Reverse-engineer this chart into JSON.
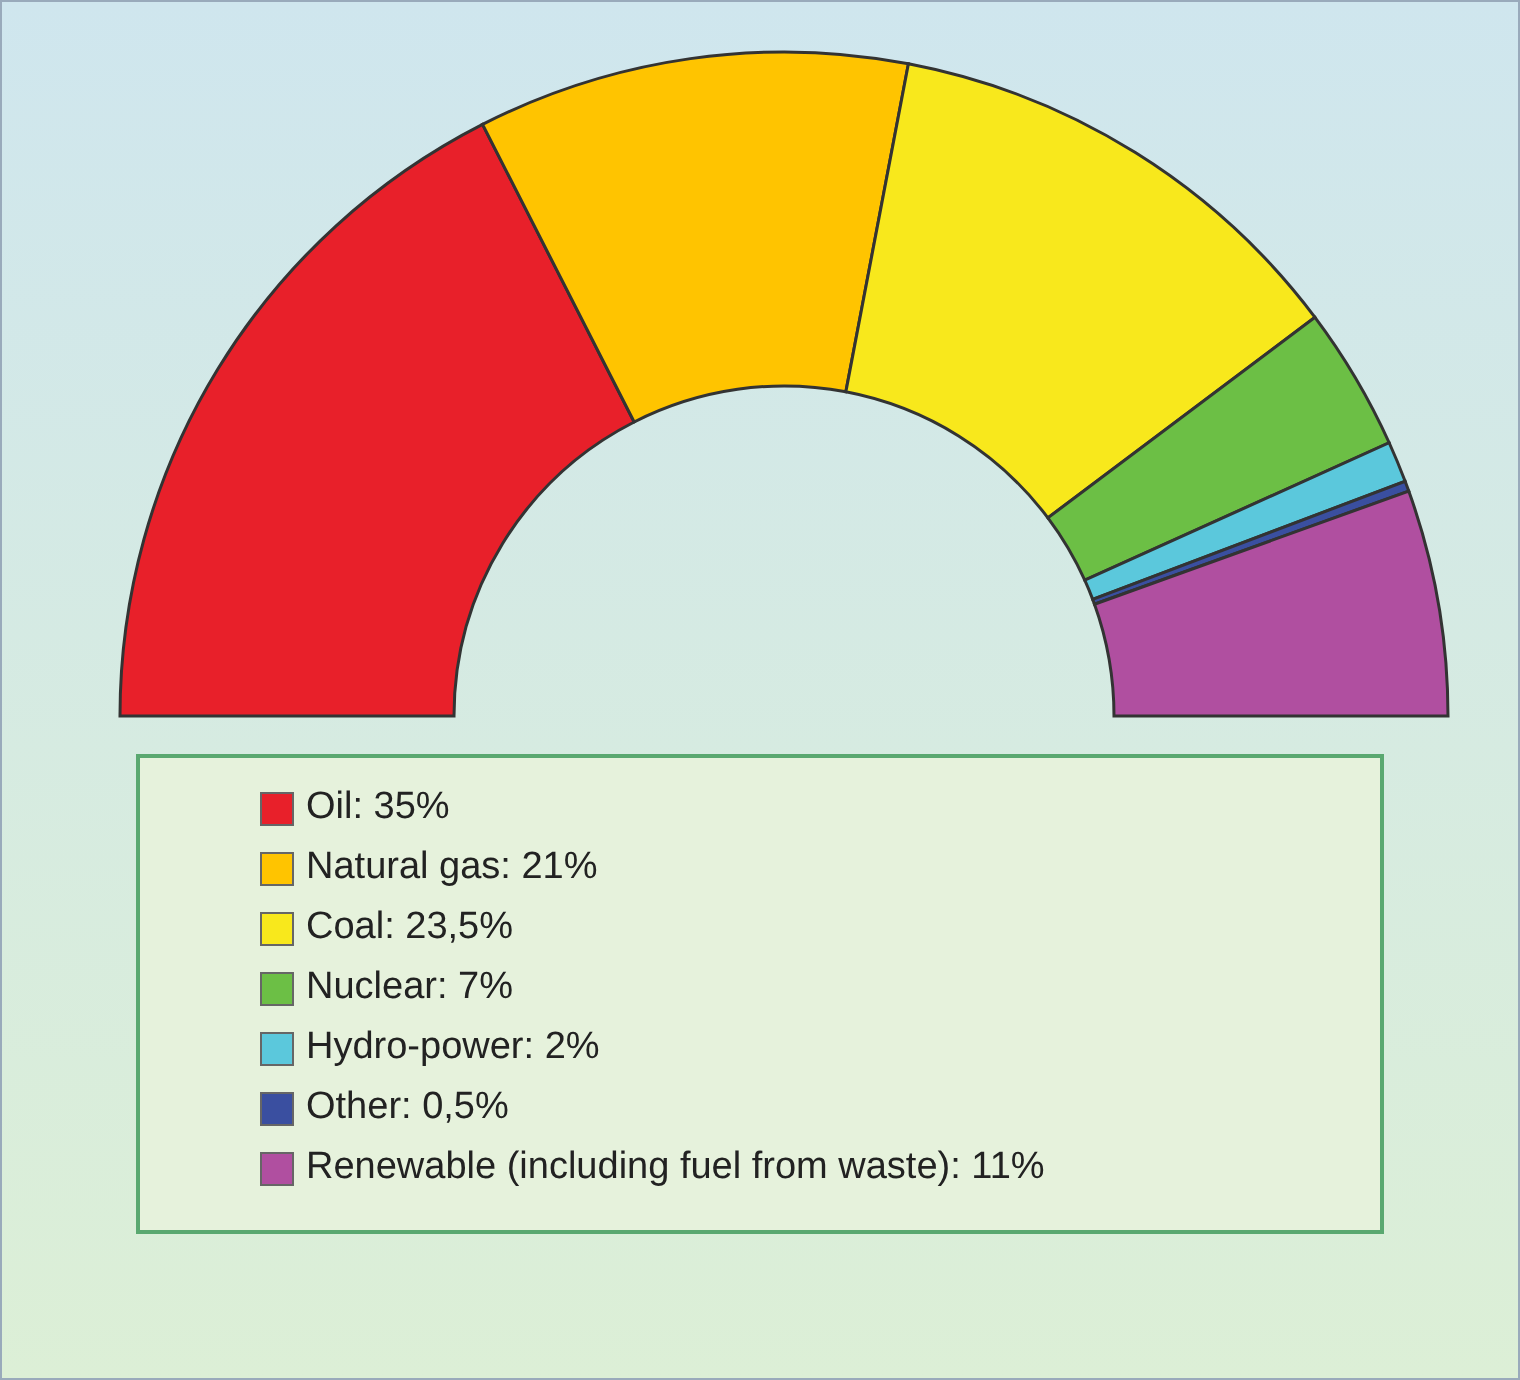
{
  "chart_data": {
    "type": "donut",
    "categories": [
      "Oil",
      "Natural gas",
      "Coal",
      "Nuclear",
      "Hydro-power",
      "Other",
      "Renewable (including fuel from waste)"
    ],
    "values": [
      35,
      21,
      23.5,
      7,
      2,
      0.5,
      11
    ],
    "value_labels": [
      "35%",
      "21%",
      "23,5%",
      "7%",
      "2%",
      "0,5%",
      "11%"
    ],
    "colors": [
      "#e8202a",
      "#ffc400",
      "#f8e81c",
      "#6cbf45",
      "#5bc8dc",
      "#3a4fa0",
      "#b04fa0"
    ],
    "legend": "bottom"
  }
}
